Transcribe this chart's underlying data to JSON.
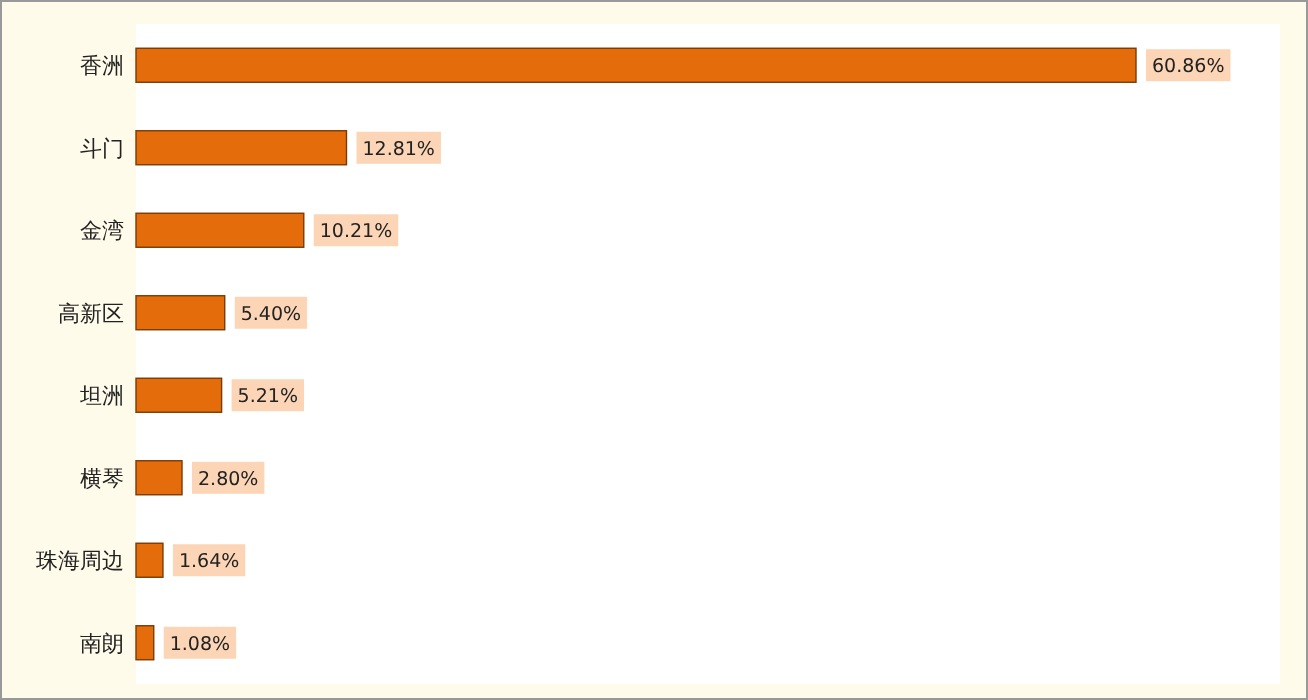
{
  "chart_data": {
    "type": "bar",
    "orientation": "horizontal",
    "color": "#e46c0a",
    "categories": [
      "香洲",
      "斗门",
      "金湾",
      "高新区",
      "坦洲",
      "横琴",
      "珠海周边",
      "南朗"
    ],
    "values": [
      60.86,
      12.81,
      10.21,
      5.4,
      5.21,
      2.8,
      1.64,
      1.08
    ],
    "value_labels": [
      "60.86%",
      "12.81%",
      "10.21%",
      "5.40%",
      "5.21%",
      "2.80%",
      "1.64%",
      "1.08%"
    ]
  }
}
